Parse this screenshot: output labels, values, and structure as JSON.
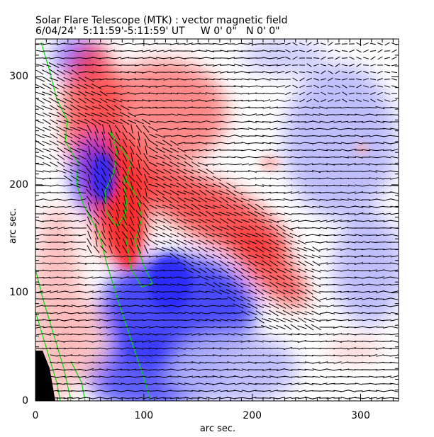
{
  "chart_data": {
    "type": "heatmap",
    "title": "Solar Flare Telescope (MTK) : vector magnetic field",
    "subtitle": "6/04/24'  5:11:59'-5:11:59' UT     W 0' 0\"   N 0' 0\"",
    "xlabel": "arc sec.",
    "ylabel": "arc sec.",
    "xlim": [
      0,
      335
    ],
    "ylim": [
      0,
      335
    ],
    "xticks": [
      "0",
      "100",
      "200",
      "300"
    ],
    "yticks": [
      "0",
      "100",
      "200",
      "300"
    ],
    "xtick_values": [
      0,
      100,
      200,
      300
    ],
    "ytick_values": [
      0,
      100,
      200,
      300
    ],
    "colormap": {
      "positive": "#ff3030",
      "negative": "#3030ff",
      "zero": "#ffffff"
    },
    "overlays": [
      "transverse field vectors (black dashes)",
      "contours (green)"
    ],
    "contour_color": "#00e000"
  }
}
